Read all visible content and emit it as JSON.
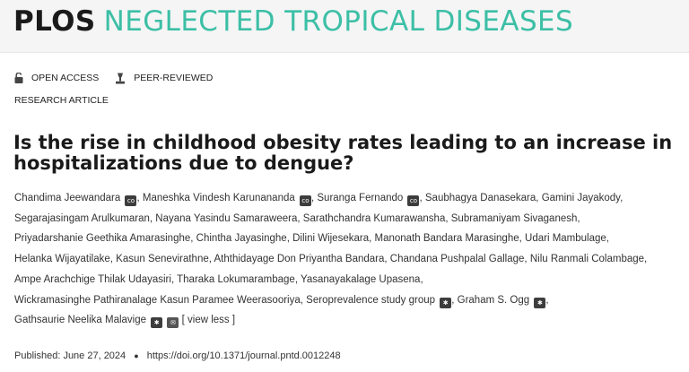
{
  "header": {
    "brand_plos": "PLOS",
    "brand_journal": "NEGLECTED TROPICAL DISEASES"
  },
  "badges": {
    "open_access": "OPEN ACCESS",
    "peer_reviewed": "PEER-REVIEWED"
  },
  "article_type": "RESEARCH ARTICLE",
  "title": "Is the rise in childhood obesity rates leading to an increase in hospitalizations due to dengue?",
  "authors": [
    "Chandima Jeewandara",
    "Maneshka Vindesh Karunananda",
    "Suranga Fernando",
    "Saubhagya Danasekara",
    "Gamini Jayakody",
    "Segarajasingam Arulkumaran",
    "Nayana Yasindu Samaraweera",
    "Sarathchandra Kumarawansha",
    "Subramaniyam Sivaganesh",
    "Priyadarshanie Geethika Amarasinghe",
    "Chintha Jayasinghe",
    "Dilini Wijesekara",
    "Manonath Bandara Marasinghe",
    "Udari Mambulage",
    "Helanka Wijayatilake",
    "Kasun Senevirathne",
    "Aththidayage Don Priyantha Bandara",
    "Chandana Pushpalal Gallage",
    "Nilu Ranmali Colambage",
    "Ampe Arachchige Thilak Udayasiri",
    "Tharaka Lokumarambage",
    "Yasanayakalage Upasena",
    "Wickramasinghe Pathiranalage Kasun Paramee Weerasooriya",
    "Seroprevalence study group",
    "Graham S. Ogg",
    "Gathsaurie Neelika Malavige"
  ],
  "view_less": "[ view less ]",
  "published": {
    "label": "Published:",
    "date": "June 27, 2024",
    "doi": "https://doi.org/10.1371/journal.pntd.0012248"
  },
  "colors": {
    "brand_teal": "#3cbfa6",
    "header_bg": "#f5f5f5"
  }
}
